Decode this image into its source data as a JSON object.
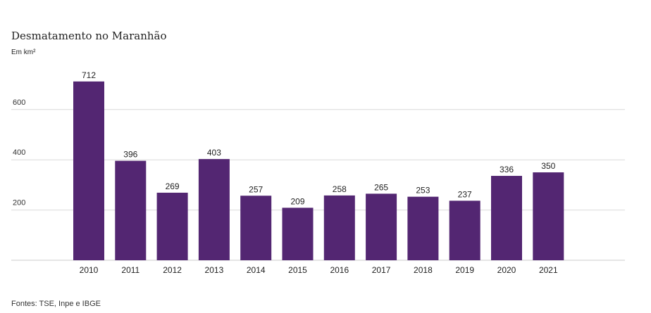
{
  "chart_data": {
    "type": "bar",
    "title": "Desmatamento no Maranhão",
    "subtitle": "Em km²",
    "source": "Fontes: TSE, Inpe e IBGE",
    "categories": [
      "2010",
      "2011",
      "2012",
      "2013",
      "2014",
      "2015",
      "2016",
      "2017",
      "2018",
      "2019",
      "2020",
      "2021"
    ],
    "values": [
      712,
      396,
      269,
      403,
      257,
      209,
      258,
      265,
      253,
      237,
      336,
      350
    ],
    "value_labels": [
      "712",
      "396",
      "269",
      "403",
      "257",
      "209",
      "258",
      "265",
      "253",
      "237",
      "336",
      "350"
    ],
    "yticks": [
      200,
      400,
      600
    ],
    "ytick_labels": [
      "200",
      "400",
      "600"
    ],
    "ylim": [
      0,
      712
    ],
    "grid": true,
    "bar_color": "#532672",
    "grid_color": "#d9d9d9",
    "baseline_color": "#cccccc"
  }
}
